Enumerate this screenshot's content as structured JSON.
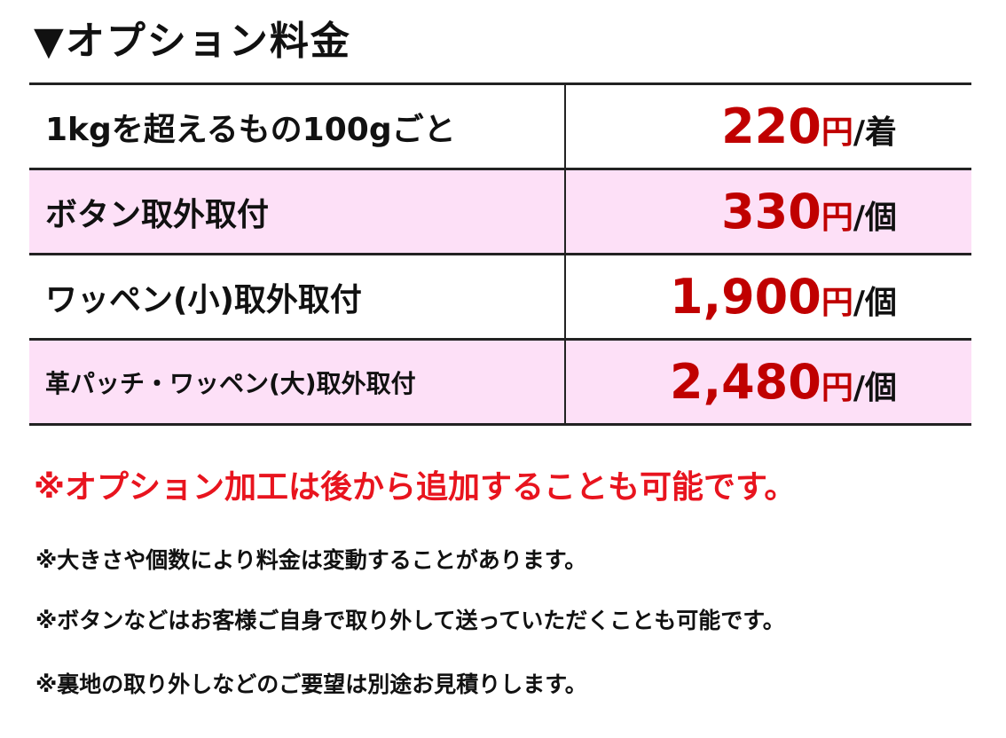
{
  "title": "▼オプション料金",
  "rows": [
    {
      "name": "1kgを超えるもの100gごと",
      "amount": "220",
      "currency": "円",
      "unit": "/着"
    },
    {
      "name": "ボタン取外取付",
      "amount": "330",
      "currency": "円",
      "unit": "/個"
    },
    {
      "name": "ワッペン(小)取外取付",
      "amount": "1,900",
      "currency": "円",
      "unit": "/個"
    },
    {
      "name": "革パッチ・ワッペン(大)取外取付",
      "amount": "2,480",
      "currency": "円",
      "unit": "/個"
    }
  ],
  "main_note": "※オプション加工は後から追加することも可能です。",
  "notes": [
    "※大きさや個数により料金は変動することがあります。",
    "※ボタンなどはお客様ご自身で取り外して送っていただくことも可能です。",
    "※裏地の取り外しなどのご要望は別途お見積りします。"
  ],
  "colors": {
    "price": "#c00000",
    "highlight_row": "#fde0f7",
    "main_note": "#e8141e"
  }
}
